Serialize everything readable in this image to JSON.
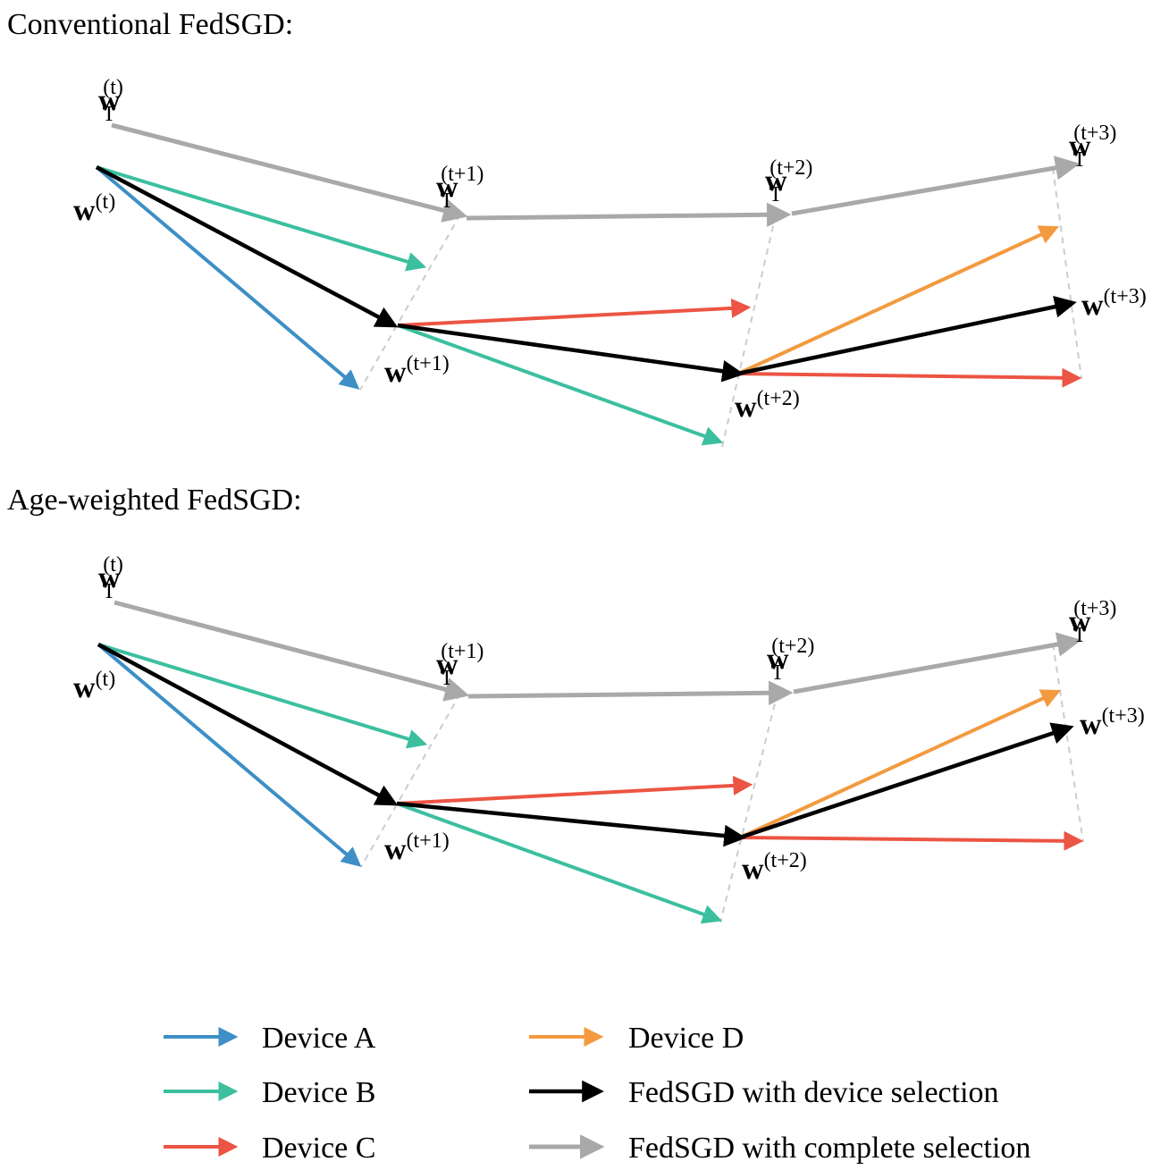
{
  "panels": [
    {
      "title": "Conventional FedSGD:",
      "labels": {
        "wT_t": {
          "base": "w",
          "sub": "T",
          "sup": "(t)"
        },
        "wT_t1": {
          "base": "w",
          "sub": "T",
          "sup": "(t+1)"
        },
        "wT_t2": {
          "base": "w",
          "sub": "T",
          "sup": "(t+2)"
        },
        "wT_t3": {
          "base": "w",
          "sub": "T",
          "sup": "(t+3)"
        },
        "w_t": {
          "base": "w",
          "sup": "(t)"
        },
        "w_t1": {
          "base": "w",
          "sup": "(t+1)"
        },
        "w_t2": {
          "base": "w",
          "sup": "(t+2)"
        },
        "w_t3": {
          "base": "w",
          "sup": "(t+3)"
        }
      }
    },
    {
      "title": "Age-weighted FedSGD:",
      "labels": {
        "wT_t": {
          "base": "w",
          "sub": "T",
          "sup": "(t)"
        },
        "wT_t1": {
          "base": "w",
          "sub": "T",
          "sup": "(t+1)"
        },
        "wT_t2": {
          "base": "w",
          "sub": "T",
          "sup": "(t+2)"
        },
        "wT_t3": {
          "base": "w",
          "sub": "T",
          "sup": "(t+3)"
        },
        "w_t": {
          "base": "w",
          "sup": "(t)"
        },
        "w_t1": {
          "base": "w",
          "sup": "(t+1)"
        },
        "w_t2": {
          "base": "w",
          "sup": "(t+2)"
        },
        "w_t3": {
          "base": "w",
          "sup": "(t+3)"
        }
      }
    }
  ],
  "legend": [
    {
      "key": "device-a",
      "label": "Device A",
      "color": "#3d8fc6"
    },
    {
      "key": "device-b",
      "label": "Device B",
      "color": "#3bbf9f"
    },
    {
      "key": "device-c",
      "label": "Device C",
      "color": "#ec5443"
    },
    {
      "key": "device-d",
      "label": "Device D",
      "color": "#f39a3f"
    },
    {
      "key": "fedsgd-device-selection",
      "label": "FedSGD with device selection",
      "color": "#000000"
    },
    {
      "key": "fedsgd-complete-selection",
      "label": "FedSGD with complete selection",
      "color": "#a9a9a9"
    }
  ],
  "colors": {
    "device_a": "#3d8fc6",
    "device_b": "#3bbf9f",
    "device_c": "#ec5443",
    "device_d": "#f39a3f",
    "device_selection": "#000000",
    "complete_selection": "#a9a9a9",
    "guide": "#cccccc"
  }
}
